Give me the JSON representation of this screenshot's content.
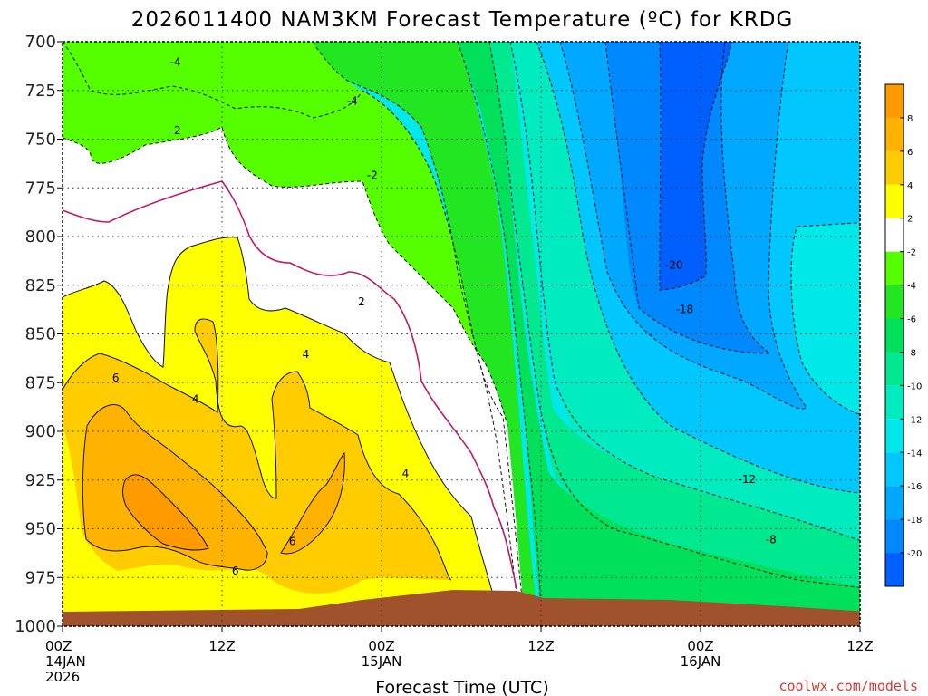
{
  "title": "2026011400 NAM3KM Forecast Temperature (ºC) for KRDG",
  "credit": "coolwx.com/models",
  "chart_data": {
    "type": "heatmap",
    "title": "2026011400 NAM3KM Forecast Temperature (ºC) for KRDG",
    "xlabel": "Forecast Time (UTC)",
    "ylabel": "",
    "x_ticks": [
      {
        "hour": 0,
        "lines": [
          "00Z",
          "14JAN",
          "2026"
        ]
      },
      {
        "hour": 12,
        "lines": [
          "12Z"
        ]
      },
      {
        "hour": 24,
        "lines": [
          "00Z",
          "15JAN"
        ]
      },
      {
        "hour": 36,
        "lines": [
          "12Z"
        ]
      },
      {
        "hour": 48,
        "lines": [
          "00Z",
          "16JAN"
        ]
      },
      {
        "hour": 60,
        "lines": [
          "12Z"
        ]
      }
    ],
    "xlim": [
      0,
      60
    ],
    "y_ticks": [
      "700",
      "725",
      "750",
      "775",
      "800",
      "825",
      "850",
      "875",
      "900",
      "925",
      "950",
      "975",
      "1000"
    ],
    "ylim": [
      1000,
      700
    ],
    "grid": true,
    "colorbar": {
      "placement": "right",
      "bins": [
        {
          "low": 8,
          "high": 10,
          "color": "#ff9a00"
        },
        {
          "low": 6,
          "high": 8,
          "color": "#ffb200"
        },
        {
          "low": 4,
          "high": 6,
          "color": "#ffcc00"
        },
        {
          "low": 2,
          "high": 4,
          "color": "#ffff00"
        },
        {
          "low": -2,
          "high": 2,
          "color": "#ffffff"
        },
        {
          "low": -4,
          "high": -2,
          "color": "#55ff00"
        },
        {
          "low": -6,
          "high": -4,
          "color": "#22e622"
        },
        {
          "low": -8,
          "high": -6,
          "color": "#00e05a"
        },
        {
          "low": -10,
          "high": -8,
          "color": "#00e890"
        },
        {
          "low": -12,
          "high": -10,
          "color": "#00ecc0"
        },
        {
          "low": -14,
          "high": -12,
          "color": "#00e8e8"
        },
        {
          "low": -16,
          "high": -14,
          "color": "#00c8ff"
        },
        {
          "low": -18,
          "high": -16,
          "color": "#00a8ff"
        },
        {
          "low": -20,
          "high": -18,
          "color": "#0088ff"
        },
        {
          "low": -22,
          "high": -20,
          "color": "#0060ff"
        }
      ],
      "tick_labels": [
        "8",
        "6",
        "4",
        "2",
        "-2",
        "-4",
        "-6",
        "-8",
        "-10",
        "-12",
        "-14",
        "-16",
        "-18",
        "-20"
      ]
    },
    "contour_labels": [
      {
        "text": "-4",
        "hour": 8.5,
        "p": 711
      },
      {
        "text": "-4",
        "hour": 21.8,
        "p": 731
      },
      {
        "text": "-2",
        "hour": 8.5,
        "p": 746
      },
      {
        "text": "-2",
        "hour": 23.3,
        "p": 769
      },
      {
        "text": "2",
        "hour": 22.5,
        "p": 834
      },
      {
        "text": "4",
        "hour": 18.3,
        "p": 861
      },
      {
        "text": "6",
        "hour": 4.0,
        "p": 873
      },
      {
        "text": "4",
        "hour": 10.0,
        "p": 884
      },
      {
        "text": "4",
        "hour": 25.8,
        "p": 922
      },
      {
        "text": "6",
        "hour": 13.0,
        "p": 972
      },
      {
        "text": "6",
        "hour": 17.3,
        "p": 957
      },
      {
        "text": "-20",
        "hour": 46.0,
        "p": 815
      },
      {
        "text": "-18",
        "hour": 46.8,
        "p": 838
      },
      {
        "text": "-12",
        "hour": 51.5,
        "p": 925
      },
      {
        "text": "-8",
        "hour": 53.3,
        "p": 956
      }
    ],
    "terrain_color": "#a0522d"
  }
}
